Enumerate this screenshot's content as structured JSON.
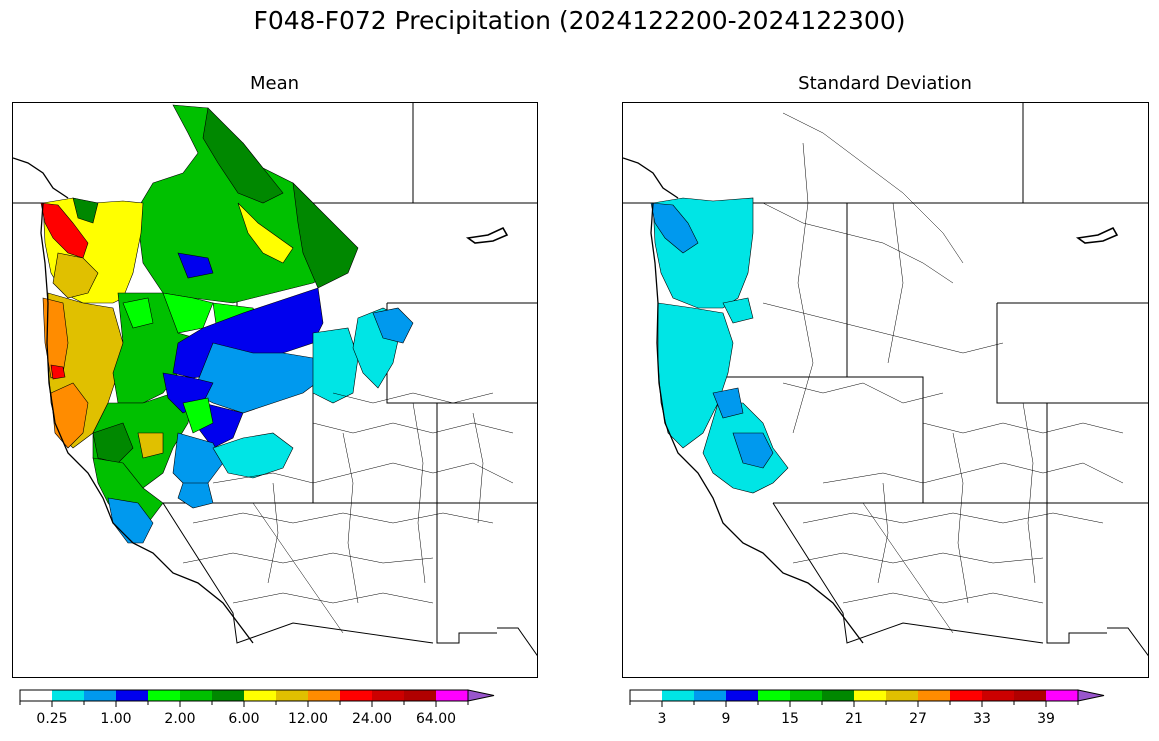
{
  "figure": {
    "title": "F048-F072 Precipitation (2024122200-2024122300)"
  },
  "panels": [
    {
      "id": "mean",
      "title": "Mean",
      "colorbar": {
        "colors": [
          "#ffffff",
          "#00e5e5",
          "#0099ee",
          "#0000ee",
          "#00ff00",
          "#00c000",
          "#008800",
          "#ffff00",
          "#e0c000",
          "#ff8c00",
          "#ff0000",
          "#cc0000",
          "#b00000",
          "#ff00ff",
          "#9955cc"
        ],
        "tick_labels": [
          "0.25",
          "1.00",
          "2.00",
          "6.00",
          "12.00",
          "24.00",
          "64.00"
        ]
      }
    },
    {
      "id": "std",
      "title": "Standard Deviation",
      "colorbar": {
        "colors": [
          "#ffffff",
          "#00e5e5",
          "#0099ee",
          "#0000ee",
          "#00ff00",
          "#00c000",
          "#008800",
          "#ffff00",
          "#e0c000",
          "#ff8c00",
          "#ff0000",
          "#cc0000",
          "#b00000",
          "#ff00ff",
          "#9955cc"
        ],
        "tick_labels": [
          "3",
          "9",
          "15",
          "21",
          "27",
          "33",
          "39"
        ]
      }
    }
  ]
}
